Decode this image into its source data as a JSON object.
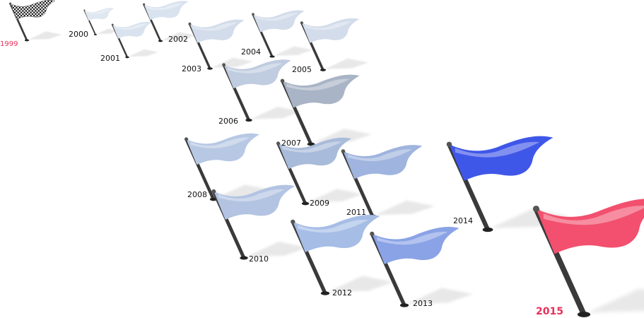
{
  "flags": [
    {
      "year": "1999",
      "style": "checkered",
      "color": "#222222"
    },
    {
      "year": "2000",
      "style": "plain",
      "color": "#dfe7f1"
    },
    {
      "year": "2001",
      "style": "plain",
      "color": "#d9e3ef"
    },
    {
      "year": "2002",
      "style": "plain",
      "color": "#d9e3ef"
    },
    {
      "year": "2003",
      "style": "plain",
      "color": "#d3dcea"
    },
    {
      "year": "2004",
      "style": "plain",
      "color": "#d3dcea"
    },
    {
      "year": "2005",
      "style": "plain",
      "color": "#d3dcea"
    },
    {
      "year": "2006",
      "style": "plain",
      "color": "#c0cce0"
    },
    {
      "year": "2007",
      "style": "plain",
      "color": "#a9b4c6"
    },
    {
      "year": "2008",
      "style": "plain",
      "color": "#b7c8e4"
    },
    {
      "year": "2009",
      "style": "plain",
      "color": "#a9bbda"
    },
    {
      "year": "2010",
      "style": "plain",
      "color": "#b3c4e2"
    },
    {
      "year": "2011",
      "style": "plain",
      "color": "#9fb4de"
    },
    {
      "year": "2012",
      "style": "plain",
      "color": "#a6bde6"
    },
    {
      "year": "2013",
      "style": "plain",
      "color": "#8aa3e6"
    },
    {
      "year": "2014",
      "style": "plain",
      "color": "#3f57e8"
    },
    {
      "year": "2015",
      "style": "plain",
      "color": "#f2506e"
    }
  ],
  "colors": {
    "pole": "#3a3a3a",
    "shadow": "#d6d6d6",
    "label": "#111111",
    "highlight_label": "#e8305a"
  }
}
